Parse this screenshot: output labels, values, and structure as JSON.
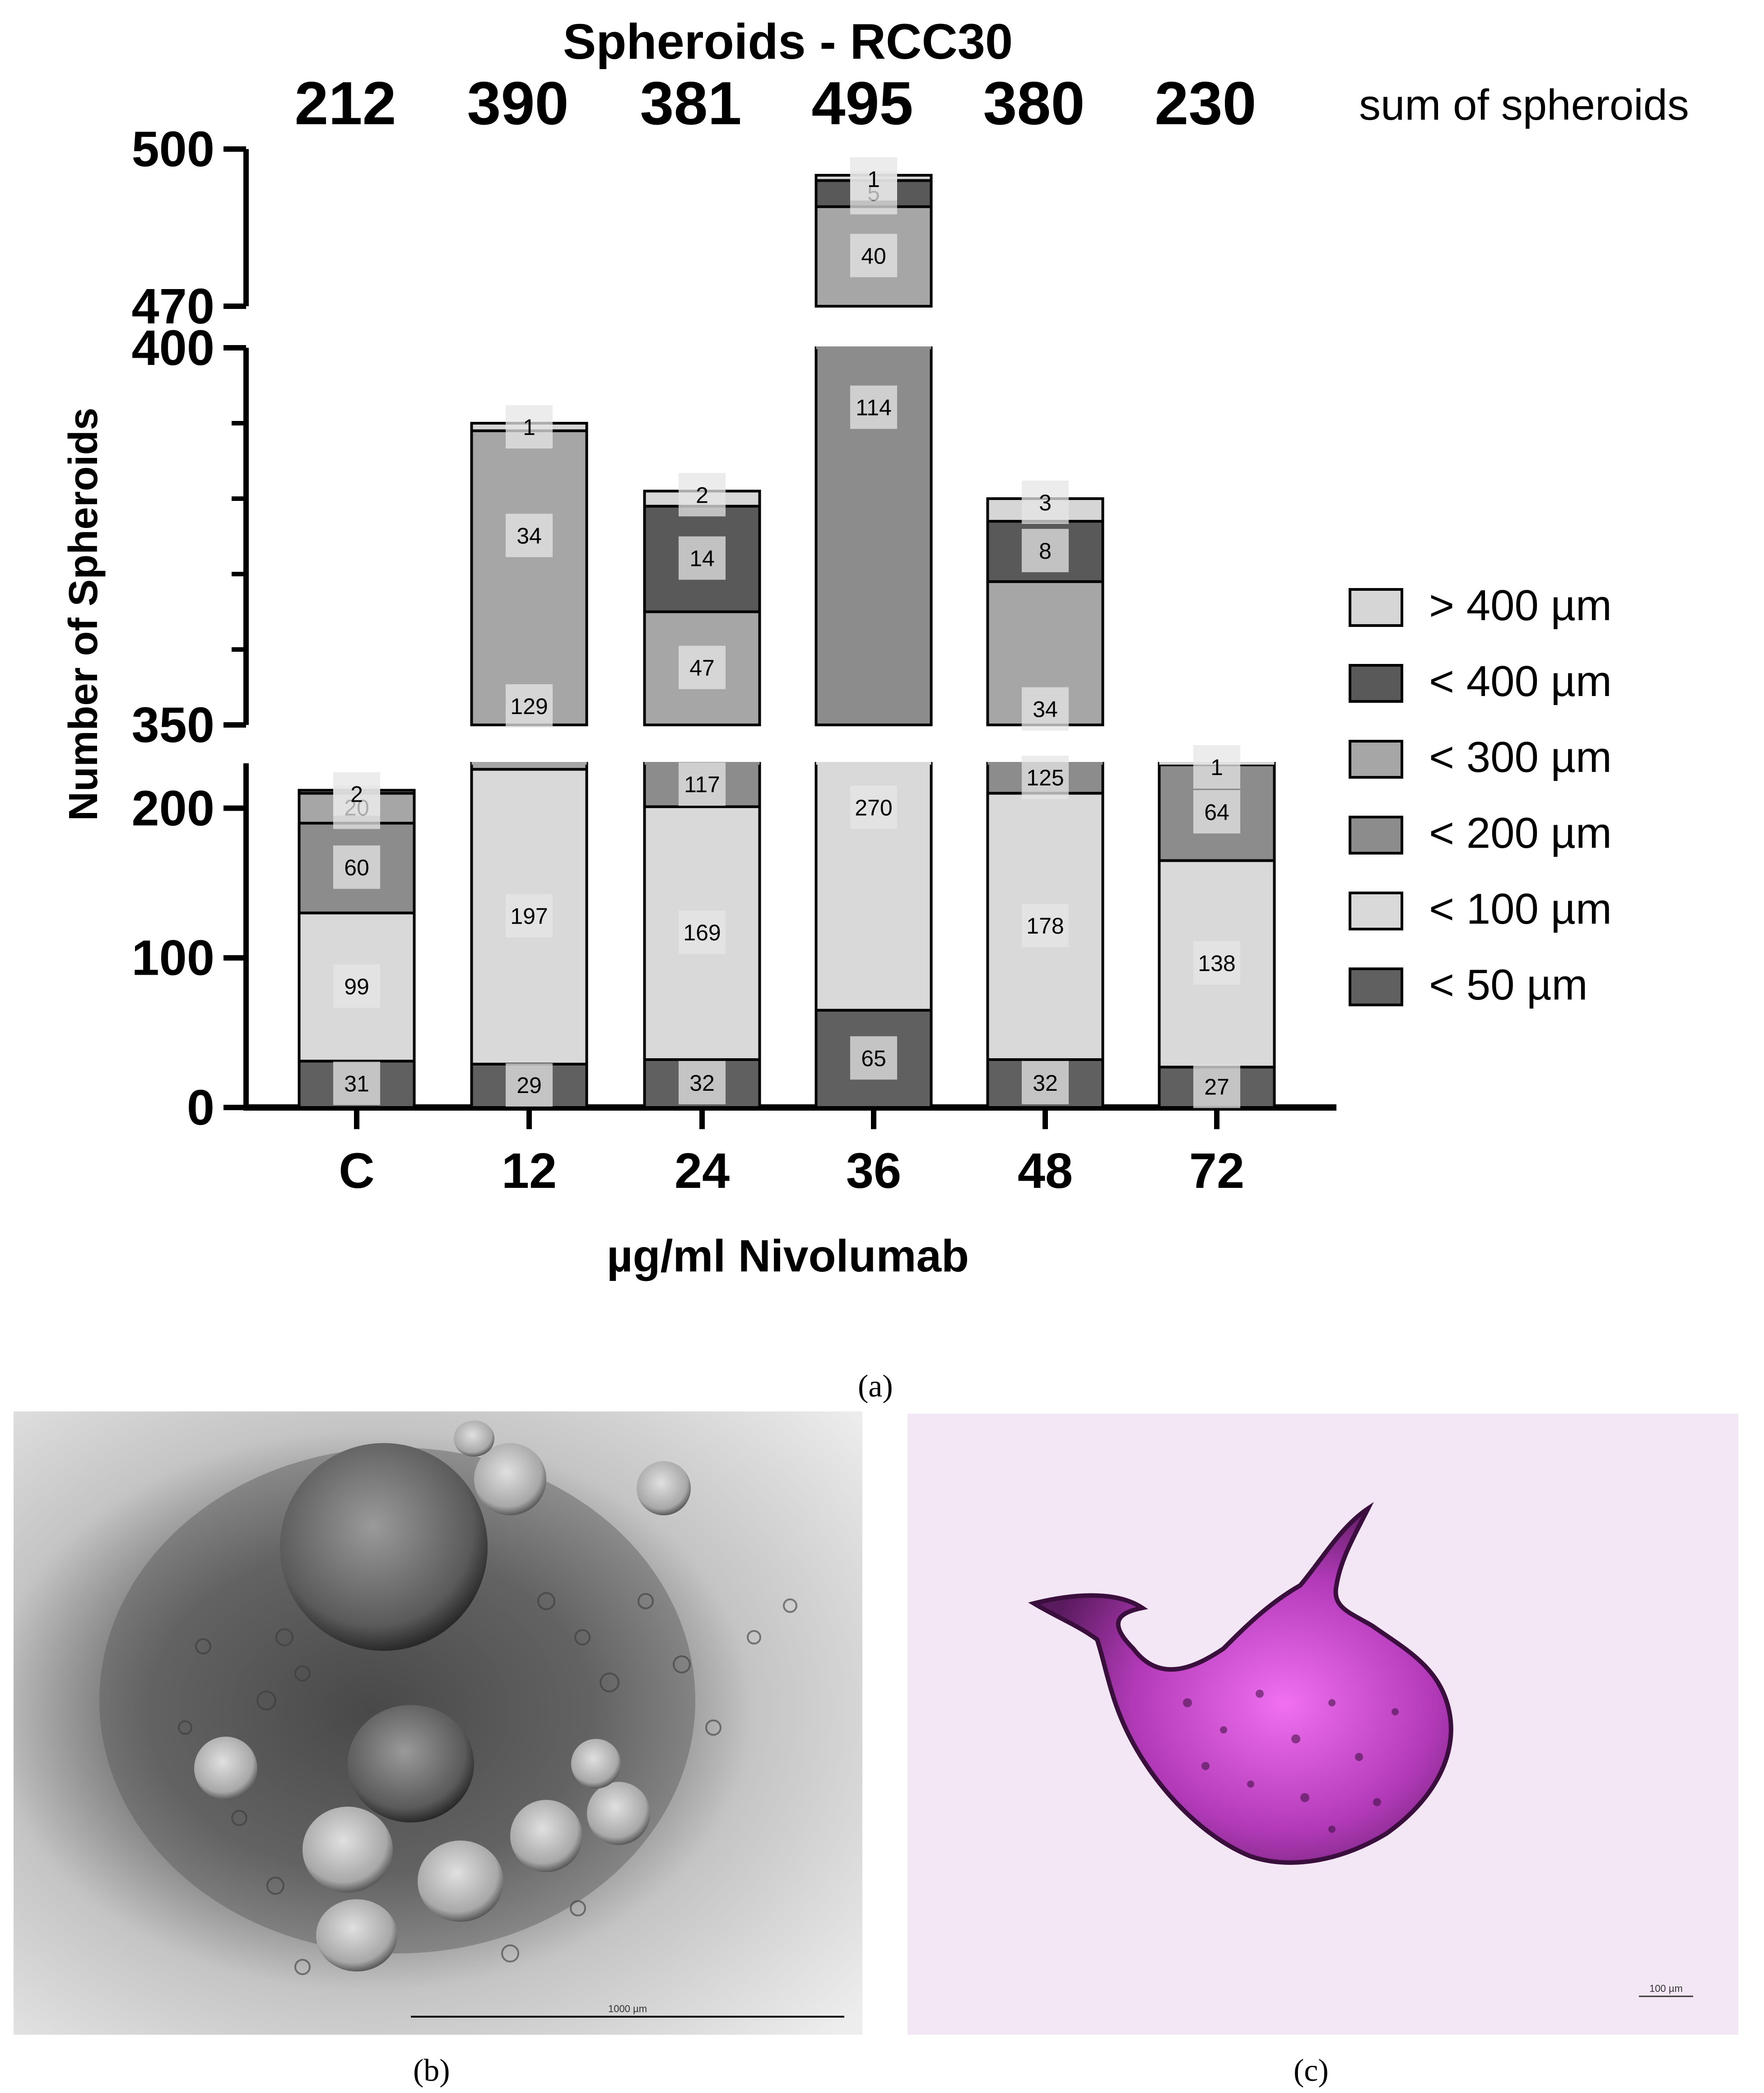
{
  "chart_data": {
    "type": "bar",
    "stacked": true,
    "broken_y_axis": true,
    "title": "Spheroids - RCC30",
    "xlabel": "µg/ml Nivolumab",
    "ylabel": "Number of Spheroids",
    "categories": [
      "C",
      "12",
      "24",
      "36",
      "48",
      "72"
    ],
    "totals": [
      "212",
      "390",
      "381",
      "495",
      "380",
      "230"
    ],
    "totals_label": "sum of spheroids",
    "y_segments": [
      {
        "range": [
          0,
          230
        ],
        "ticks": [
          0,
          100,
          200
        ],
        "tick_labels": [
          "0",
          "100",
          "200"
        ]
      },
      {
        "range": [
          350,
          400
        ],
        "ticks": [
          350,
          400
        ],
        "tick_labels": [
          "350",
          "400"
        ],
        "minor_ticks": [
          360,
          370,
          380,
          390
        ]
      },
      {
        "range": [
          470,
          500
        ],
        "ticks": [
          470,
          500
        ],
        "tick_labels": [
          "470",
          "500"
        ]
      }
    ],
    "legend_position": "right",
    "series": [
      {
        "name": "< 50 µm",
        "color": "#606060",
        "values": [
          31,
          29,
          32,
          65,
          32,
          27
        ],
        "labels": [
          "31",
          "29",
          "32",
          "65",
          "32",
          "27"
        ]
      },
      {
        "name": "< 100 µm",
        "color": "#d9d9d9",
        "values": [
          99,
          197,
          169,
          270,
          178,
          138
        ],
        "labels": [
          "99",
          "197",
          "169",
          "270",
          "178",
          "138"
        ]
      },
      {
        "name": "< 200 µm",
        "color": "#8c8c8c",
        "values": [
          60,
          0,
          117,
          114,
          125,
          64
        ],
        "labels": [
          "60",
          "",
          "117",
          "114",
          "125",
          "64"
        ]
      },
      {
        "name": "< 300 µm",
        "color": "#a6a6a6",
        "values": [
          20,
          163,
          47,
          40,
          34,
          0
        ],
        "labels": [
          "20",
          "129|34",
          "47",
          "40",
          "34",
          ""
        ]
      },
      {
        "name": "< 400 µm",
        "color": "#595959",
        "values": [
          0,
          0,
          14,
          5,
          8,
          0
        ],
        "labels": [
          "",
          "",
          "14",
          "5",
          "8",
          ""
        ]
      },
      {
        "name": "> 400 µm",
        "color": "#d6d6d6",
        "values": [
          2,
          1,
          2,
          1,
          3,
          1
        ],
        "labels": [
          "2",
          "1",
          "2",
          "1",
          "3",
          "1"
        ]
      }
    ]
  },
  "panels": {
    "a": "(a)",
    "b": "(b)",
    "c": "(c)",
    "scale_b": "1000 µm",
    "scale_c": "100 µm"
  }
}
